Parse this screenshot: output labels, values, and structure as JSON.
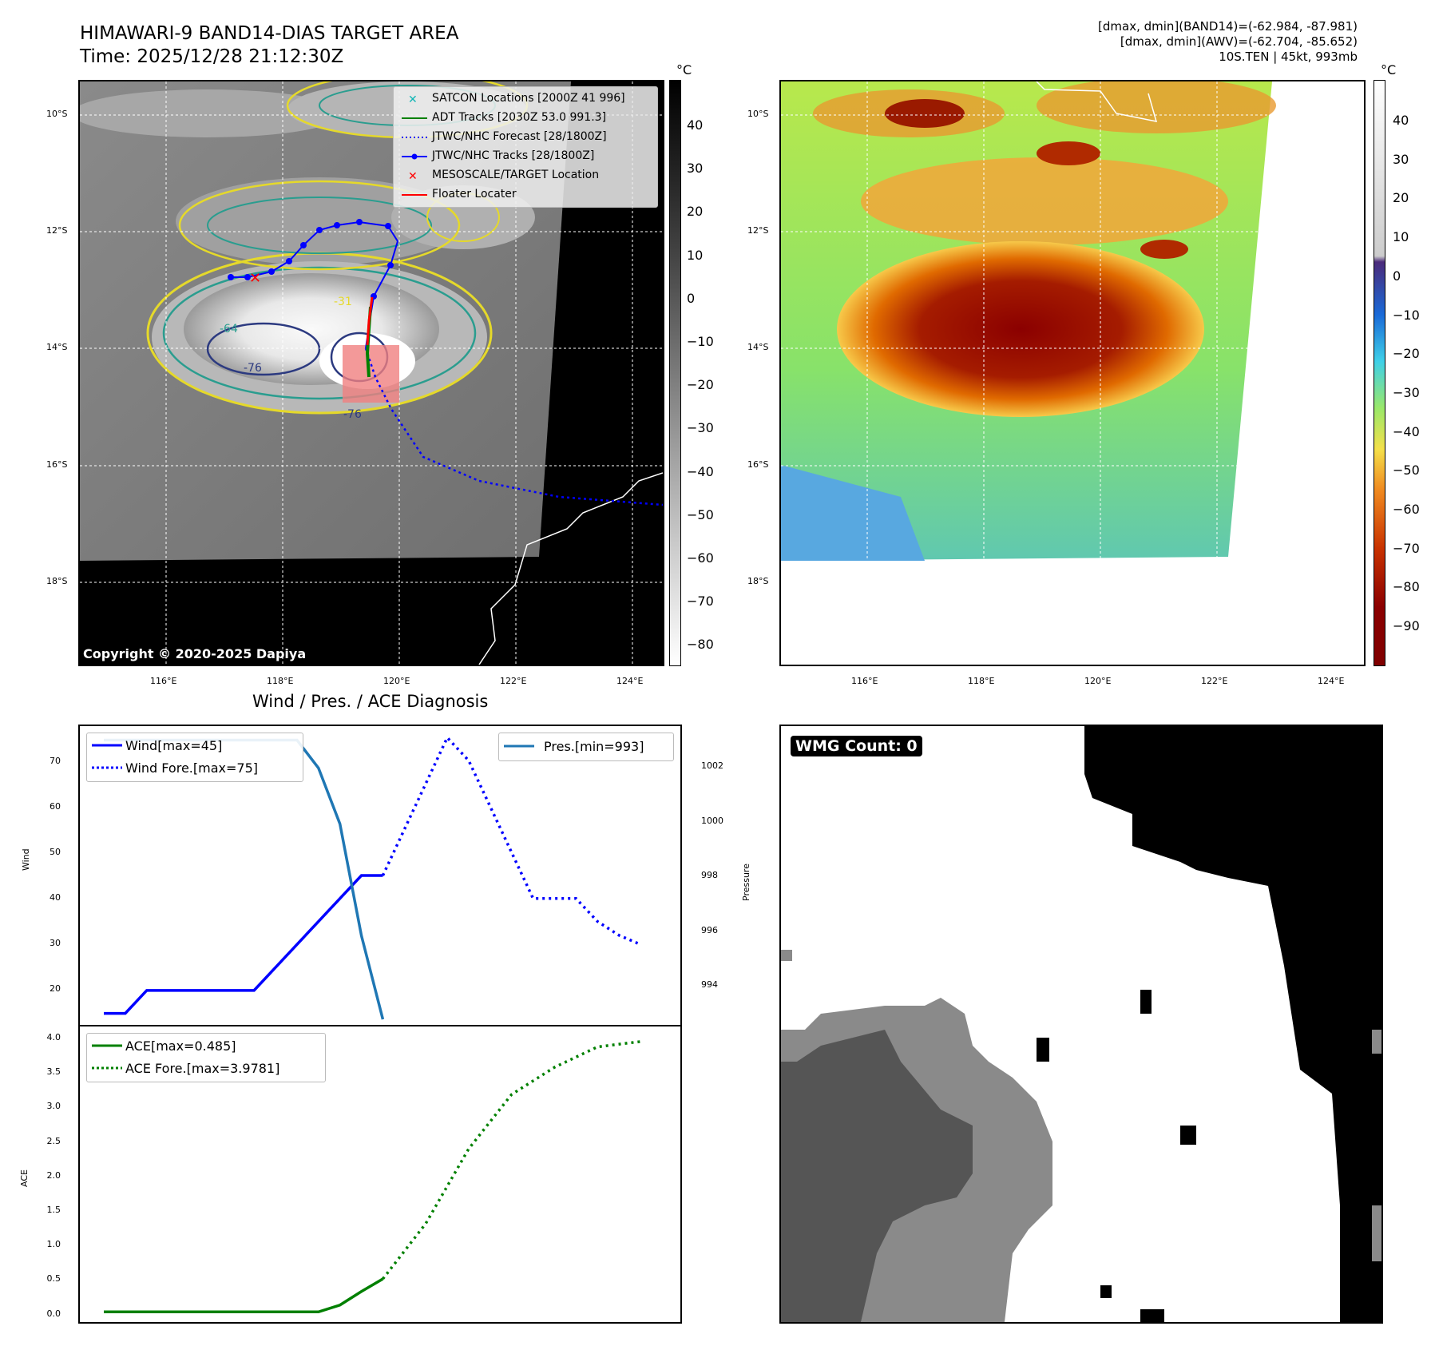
{
  "header": {
    "title_line1": "HIMAWARI-9 BAND14-DIAS TARGET AREA",
    "title_line2": "Time: 2025/12/28 21:12:30Z",
    "info_line1": "[dmax, dmin](BAND14)=(-62.984, -87.981)",
    "info_line2": "[dmax, dmin](AWV)=(-62.704, -85.652)",
    "info_line3": "10S.TEN | 45kt, 993mb"
  },
  "map_panel": {
    "lat_labels": [
      "10°S",
      "12°S",
      "14°S",
      "16°S",
      "18°S"
    ],
    "lon_labels": [
      "116°E",
      "118°E",
      "120°E",
      "122°E",
      "124°E"
    ],
    "colorbar_unit": "°C",
    "colorbar_ticks": [
      "40",
      "30",
      "20",
      "10",
      "0",
      "−10",
      "−20",
      "−30",
      "−40",
      "−50",
      "−60",
      "−70",
      "−80"
    ],
    "copyright": "Copyright © 2020-2025 Dapiya",
    "contour_labels": [
      "-31",
      "-64",
      "-76",
      "-76"
    ],
    "legend": [
      {
        "label": "SATCON Locations [2000Z 41 996]",
        "color": "#10b5b5",
        "marker": "x"
      },
      {
        "label": "ADT Tracks [2030Z 53.0 991.3]",
        "color": "#008000",
        "marker": "line"
      },
      {
        "label": "JTWC/NHC Forecast [28/1800Z]",
        "color": "#0000ff",
        "marker": "dotted"
      },
      {
        "label": "JTWC/NHC Tracks [28/1800Z]",
        "color": "#0000ff",
        "marker": "line-dot"
      },
      {
        "label": "MESOSCALE/TARGET Location",
        "color": "#ff0000",
        "marker": "x"
      },
      {
        "label": "Floater Locater",
        "color": "#ff0000",
        "marker": "line"
      }
    ]
  },
  "awv_panel": {
    "lat_labels": [
      "10°S",
      "12°S",
      "14°S",
      "16°S",
      "18°S"
    ],
    "lon_labels": [
      "116°E",
      "118°E",
      "120°E",
      "122°E",
      "124°E"
    ],
    "colorbar_unit": "°C",
    "colorbar_ticks": [
      "40",
      "30",
      "20",
      "10",
      "0",
      "−10",
      "−20",
      "−30",
      "−40",
      "−50",
      "−60",
      "−70",
      "−80",
      "−90"
    ]
  },
  "diagnosis": {
    "title": "Wind / Pres. / ACE Diagnosis",
    "wind_ylabel": "Wind",
    "pres_ylabel": "Pressure",
    "ace_ylabel": "ACE",
    "legend_wind": "Wind[max=45]",
    "legend_wind_fore": "Wind Fore.[max=75]",
    "legend_pres": "Pres.[min=993]",
    "legend_ace": "ACE[max=0.485]",
    "legend_ace_fore": "ACE Fore.[max=3.9781]",
    "wind_ticks": [
      "70",
      "60",
      "50",
      "40",
      "30",
      "20"
    ],
    "pres_ticks": [
      "1002",
      "1000",
      "998",
      "996",
      "994"
    ],
    "ace_ticks": [
      "4.0",
      "3.5",
      "3.0",
      "2.5",
      "2.0",
      "1.5",
      "1.0",
      "0.5",
      "0.0"
    ]
  },
  "wmg_panel": {
    "label": "WMG Count: 0"
  },
  "chart_data": [
    {
      "type": "line",
      "title": "",
      "ylabel": "Wind",
      "ylim": [
        12.5,
        77.5
      ],
      "series": [
        {
          "name": "Wind[max=45]",
          "x": [
            0,
            1,
            2,
            3,
            4,
            5,
            6,
            7,
            8,
            9,
            10,
            11,
            12,
            13
          ],
          "values": [
            15,
            15,
            20,
            20,
            20,
            20,
            20,
            20,
            25,
            30,
            35,
            40,
            45,
            45
          ]
        },
        {
          "name": "Wind Fore.[max=75]",
          "x": [
            13,
            14,
            15,
            16,
            17,
            18,
            19,
            20,
            21,
            22,
            23,
            24,
            25
          ],
          "values": [
            45,
            55,
            65,
            75,
            70,
            60,
            50,
            40,
            40,
            40,
            35,
            32,
            30
          ]
        }
      ],
      "colors": {
        "wind": "#0000ff"
      }
    },
    {
      "type": "line",
      "ylabel": "Pressure",
      "ylim": [
        992.8,
        1003.5
      ],
      "series": [
        {
          "name": "Pres.[min=993]",
          "x": [
            0,
            1,
            2,
            3,
            4,
            5,
            6,
            7,
            8,
            9,
            10,
            11,
            12,
            13
          ],
          "values": [
            1003,
            1003,
            1003,
            1003,
            1003,
            1003,
            1003,
            1003,
            1003,
            1003,
            1002,
            1000,
            996,
            993
          ]
        }
      ],
      "colors": {
        "pres": "#1f77b4"
      }
    },
    {
      "type": "line",
      "ylabel": "ACE",
      "ylim": [
        -0.15,
        4.2
      ],
      "series": [
        {
          "name": "ACE[max=0.485]",
          "x": [
            0,
            2,
            4,
            6,
            8,
            10,
            11,
            12,
            13
          ],
          "values": [
            0,
            0,
            0,
            0,
            0,
            0,
            0.1,
            0.3,
            0.485
          ]
        },
        {
          "name": "ACE Fore.[max=3.9781]",
          "x": [
            13,
            15,
            17,
            19,
            21,
            23,
            25
          ],
          "values": [
            0.485,
            1.3,
            2.4,
            3.2,
            3.6,
            3.9,
            3.978
          ]
        }
      ],
      "colors": {
        "ace": "#008000"
      }
    }
  ]
}
